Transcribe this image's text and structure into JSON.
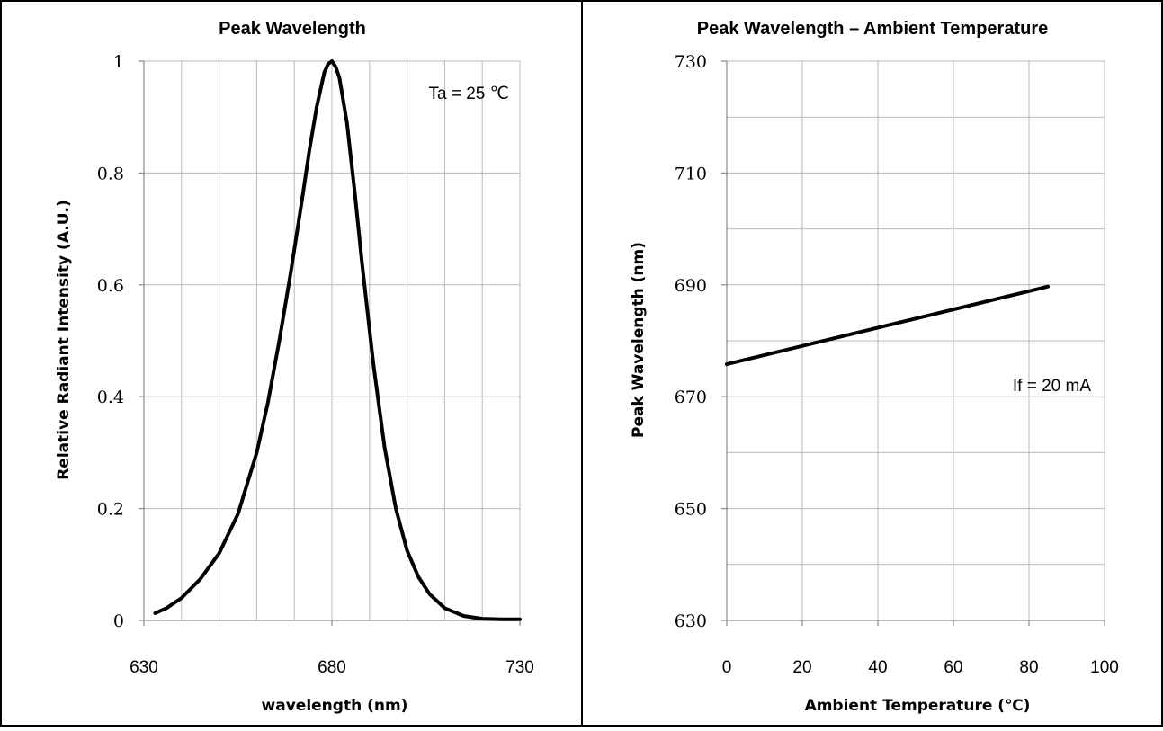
{
  "chart_data": [
    {
      "type": "line",
      "title": "Peak Wavelength",
      "xlabel": "wavelength (nm)",
      "ylabel": "Relative Radiant Intensity (A.U.)",
      "xlim": [
        630,
        730
      ],
      "ylim": [
        0,
        1
      ],
      "xticks": [
        630,
        680,
        730
      ],
      "xgrid": [
        630,
        640,
        650,
        660,
        670,
        680,
        690,
        700,
        710,
        720,
        730
      ],
      "yticks": [
        0,
        0.2,
        0.4,
        0.6,
        0.8,
        1
      ],
      "ytick_labels": [
        "0",
        "0.2",
        "0.4",
        "0.6",
        "0.8",
        "1"
      ],
      "grid": true,
      "annotation": "Ta = 25 ℃",
      "series": [
        {
          "x": [
            633,
            636,
            640,
            645,
            650,
            655,
            660,
            663,
            666,
            669,
            672,
            674,
            676,
            678,
            679,
            680,
            681,
            682,
            684,
            686,
            688,
            691,
            694,
            697,
            700,
            703,
            706,
            710,
            715,
            720,
            725,
            730
          ],
          "y": [
            0.013,
            0.022,
            0.04,
            0.074,
            0.12,
            0.19,
            0.3,
            0.39,
            0.5,
            0.62,
            0.75,
            0.84,
            0.92,
            0.98,
            0.995,
            1.0,
            0.99,
            0.97,
            0.89,
            0.77,
            0.64,
            0.46,
            0.31,
            0.2,
            0.125,
            0.078,
            0.047,
            0.022,
            0.008,
            0.003,
            0.002,
            0.002
          ]
        }
      ]
    },
    {
      "type": "line",
      "title": "Peak Wavelength – Ambient Temperature",
      "xlabel": "Ambient Temperature (℃)",
      "ylabel": "Peak Wavelength (nm)",
      "xlim": [
        0,
        100
      ],
      "ylim": [
        630,
        730
      ],
      "xticks": [
        0,
        20,
        40,
        60,
        80,
        100
      ],
      "yticks": [
        630,
        650,
        670,
        690,
        710,
        730
      ],
      "ygrid": [
        630,
        640,
        650,
        660,
        670,
        680,
        690,
        700,
        710,
        720,
        730
      ],
      "grid": true,
      "annotation": "If = 20 mA",
      "series": [
        {
          "x": [
            0,
            85
          ],
          "y": [
            675.8,
            689.7
          ]
        }
      ]
    }
  ]
}
